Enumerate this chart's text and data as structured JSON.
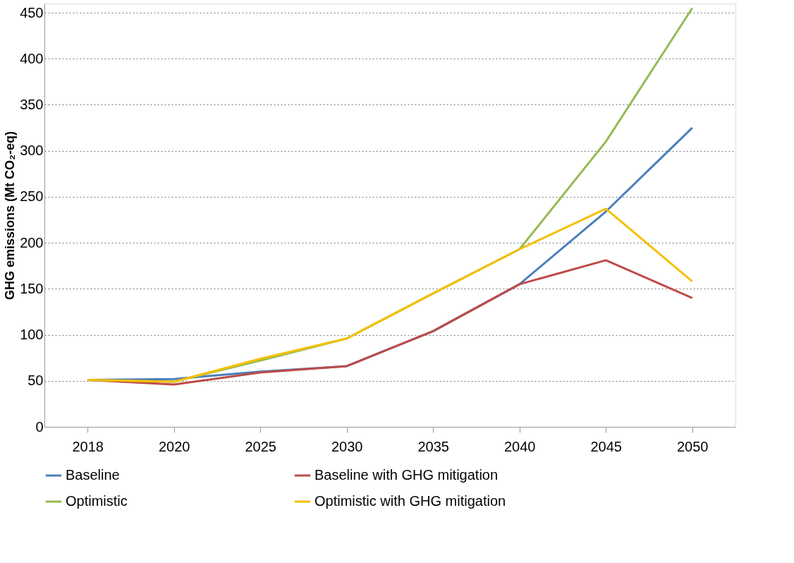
{
  "chart_data": {
    "type": "line",
    "ylabel": "GHG emissions (Mt CO₂-eq)",
    "categories": [
      "2018",
      "2020",
      "2025",
      "2030",
      "2035",
      "2040",
      "2045",
      "2050"
    ],
    "series": [
      {
        "name": "Baseline",
        "color": "#4a7ebb",
        "values": [
          51,
          52,
          60,
          66,
          104,
          155,
          234,
          325
        ]
      },
      {
        "name": "Baseline with GHG mitigation",
        "color": "#be4b48",
        "values": [
          51,
          46,
          59,
          66,
          104,
          155,
          181,
          140
        ]
      },
      {
        "name": "Optimistic",
        "color": "#98b954",
        "values": [
          51,
          49,
          72,
          96,
          145,
          193,
          310,
          455
        ]
      },
      {
        "name": "Optimistic  with GHG mitigation",
        "color": "#f5c000",
        "values": [
          51,
          49,
          74,
          96,
          145,
          193,
          237,
          158
        ]
      }
    ],
    "ylim": [
      0,
      460
    ],
    "yticks": [
      0,
      50,
      100,
      150,
      200,
      250,
      300,
      350,
      400,
      450
    ],
    "grid": "y",
    "legend": "bottom",
    "marker": "none",
    "line_style": "solid"
  }
}
